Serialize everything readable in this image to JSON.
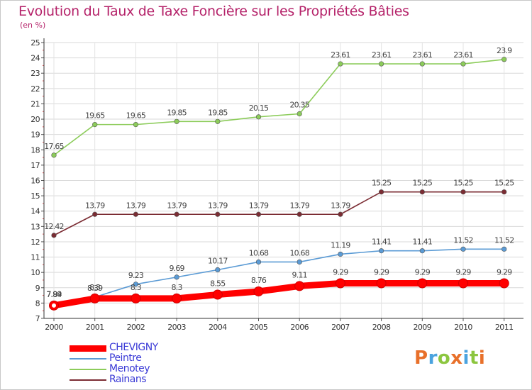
{
  "header": {
    "title": "Evolution du Taux de Taxe Foncière sur les Propriétés Bâties",
    "unit": "(en %)"
  },
  "chart_data": {
    "type": "line",
    "title": "Evolution du Taux de Taxe Foncière sur les Propriétés Bâties",
    "ylabel": "(en %)",
    "xlabel": "",
    "x": [
      "2000",
      "2001",
      "2002",
      "2003",
      "2004",
      "2005",
      "2006",
      "2007",
      "2008",
      "2009",
      "2010",
      "2011"
    ],
    "ylim": [
      7,
      25
    ],
    "yticks": [
      "7",
      "8",
      "9",
      "10",
      "11",
      "12",
      "13",
      "14",
      "15",
      "16",
      "17",
      "18",
      "19",
      "20",
      "21",
      "22",
      "23",
      "24",
      "25"
    ],
    "grid": true,
    "legend_position": "bottom-left",
    "series": [
      {
        "name": "CHEVIGNY",
        "color": "#ff0000",
        "values": [
          7.84,
          8.3,
          8.3,
          8.3,
          8.55,
          8.76,
          9.11,
          9.29,
          9.29,
          9.29,
          9.29,
          9.29
        ],
        "labels": [
          "7.84",
          "8.3",
          "8.3",
          "8.3",
          "8.55",
          "8.76",
          "9.11",
          "9.29",
          "9.29",
          "9.29",
          "9.29",
          "9.29"
        ]
      },
      {
        "name": "Peintre",
        "color": "#5b9bd5",
        "values": [
          7.99,
          8.39,
          9.23,
          9.69,
          10.17,
          10.68,
          10.68,
          11.19,
          11.41,
          11.41,
          11.52,
          11.52
        ],
        "labels": [
          "7.99",
          "8.39",
          "9.23",
          "9.69",
          "10.17",
          "10.68",
          "10.68",
          "11.19",
          "11.41",
          "11.41",
          "11.52",
          "11.52"
        ]
      },
      {
        "name": "Menotey",
        "color": "#8ccc5a",
        "values": [
          17.65,
          19.65,
          19.65,
          19.85,
          19.85,
          20.15,
          20.35,
          23.61,
          23.61,
          23.61,
          23.61,
          23.9
        ],
        "labels": [
          "17.65",
          "19.65",
          "19.65",
          "19.85",
          "19.85",
          "20.15",
          "20.35",
          "23.61",
          "23.61",
          "23.61",
          "23.61",
          "23.9"
        ]
      },
      {
        "name": "Rainans",
        "color": "#7b2c33",
        "values": [
          12.42,
          13.79,
          13.79,
          13.79,
          13.79,
          13.79,
          13.79,
          13.79,
          15.25,
          15.25,
          15.25,
          15.25
        ],
        "labels": [
          "12.42",
          "13.79",
          "13.79",
          "13.79",
          "13.79",
          "13.79",
          "13.79",
          "13.79",
          "15.25",
          "15.25",
          "15.25",
          "15.25"
        ]
      }
    ]
  },
  "legend": {
    "items": [
      {
        "label": "CHEVIGNY",
        "color": "#ff0000",
        "text_color": "#3a3ad6"
      },
      {
        "label": "Peintre",
        "color": "#5b9bd5",
        "text_color": "#3a3ad6"
      },
      {
        "label": "Menotey",
        "color": "#8ccc5a",
        "text_color": "#3a3ad6"
      },
      {
        "label": "Rainans",
        "color": "#7b2c33",
        "text_color": "#3a3ad6"
      }
    ]
  },
  "logo": {
    "text": "Proxiti",
    "colors": [
      "#e8702a",
      "#4aa3df",
      "#8cc63f",
      "#e8702a",
      "#4aa3df",
      "#8cc63f",
      "#e8702a"
    ]
  }
}
